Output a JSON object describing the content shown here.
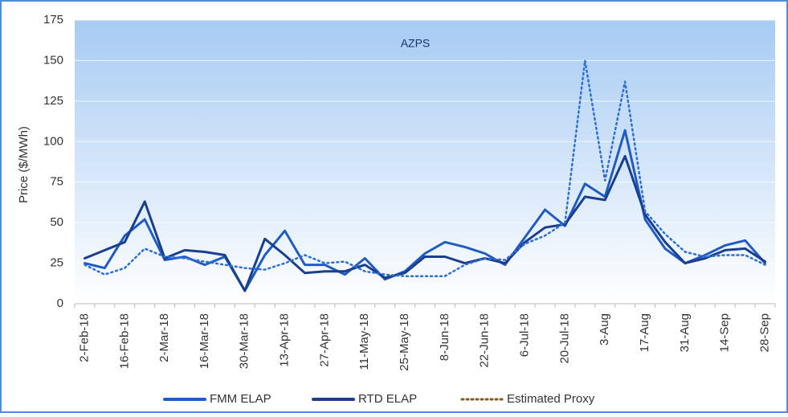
{
  "chart_data": {
    "type": "line",
    "title": "AZPS",
    "ylabel": "Price ($/MWh)",
    "categories": [
      "2-Feb-18",
      null,
      "16-Feb-18",
      null,
      "2-Mar-18",
      null,
      "16-Mar-18",
      null,
      "30-Mar-18",
      null,
      "13-Apr-18",
      null,
      "27-Apr-18",
      null,
      "11-May-18",
      null,
      "25-May-18",
      null,
      "8-Jun-18",
      null,
      "22-Jun-18",
      null,
      "6-Jul-18",
      null,
      "20-Jul-18",
      null,
      "3-Aug",
      null,
      "17-Aug",
      null,
      "31-Aug",
      null,
      "14-Sep",
      null,
      "28-Sep"
    ],
    "series": [
      {
        "name": "FMM ELAP",
        "color": "#1f5cc4",
        "style": "solid",
        "values": [
          25,
          22,
          42,
          52,
          27,
          29,
          24,
          29,
          8,
          30,
          45,
          24,
          24,
          18,
          28,
          15,
          20,
          31,
          38,
          35,
          31,
          24,
          41,
          58,
          48,
          74,
          66,
          107,
          52,
          34,
          25,
          30,
          36,
          39,
          25
        ]
      },
      {
        "name": "RTD ELAP",
        "color": "#1a3f8f",
        "style": "solid",
        "values": [
          28,
          33,
          38,
          63,
          28,
          33,
          32,
          30,
          8,
          40,
          30,
          19,
          20,
          20,
          24,
          16,
          19,
          29,
          29,
          25,
          28,
          25,
          38,
          47,
          49,
          66,
          64,
          91,
          55,
          38,
          25,
          28,
          33,
          34,
          26
        ]
      },
      {
        "name": "Estimated Proxy",
        "color": "#2e6fd6",
        "legend_color": "#8b5a1a",
        "style": "dotted",
        "values": [
          24,
          18,
          22,
          34,
          29,
          28,
          26,
          24,
          22,
          21,
          25,
          30,
          25,
          26,
          20,
          18,
          17,
          17,
          17,
          24,
          28,
          27,
          37,
          42,
          50,
          150,
          76,
          137,
          57,
          43,
          32,
          29,
          30,
          30,
          24
        ]
      }
    ],
    "ylim": [
      0,
      175
    ],
    "yticks": [
      0,
      25,
      50,
      75,
      100,
      125,
      150,
      175
    ],
    "grid": true,
    "legend": "bottom"
  }
}
